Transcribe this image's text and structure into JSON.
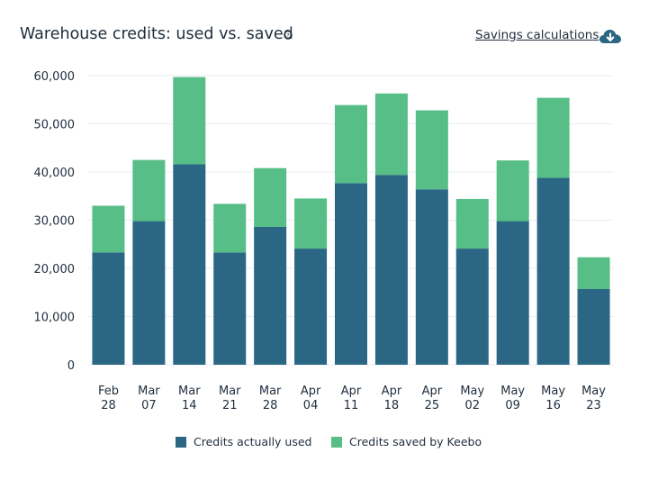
{
  "header": {
    "title": "Warehouse credits: used vs. saved",
    "savings_link": "Savings calculations"
  },
  "colors": {
    "used": "#2b6784",
    "saved": "#56be86",
    "grid": "#e9eef2",
    "axis_text": "#1f2d3d"
  },
  "icons": [
    "help-icon",
    "download-cloud-icon"
  ],
  "chart_data": {
    "type": "bar",
    "stacked": true,
    "categories": [
      "Feb 28",
      "Mar 07",
      "Mar 14",
      "Mar 21",
      "Mar 28",
      "Apr 04",
      "Apr 11",
      "Apr 18",
      "Apr 25",
      "May 02",
      "May 09",
      "May 16",
      "May 23"
    ],
    "series": [
      {
        "name": "Credits actually used",
        "values": [
          23300,
          29800,
          41600,
          23300,
          28600,
          24100,
          37700,
          39400,
          36400,
          24100,
          29800,
          38800,
          15700
        ]
      },
      {
        "name": "Credits saved by Keebo",
        "values": [
          9700,
          12700,
          18100,
          10100,
          12200,
          10400,
          16200,
          16900,
          16400,
          10300,
          12600,
          16600,
          6600
        ]
      }
    ],
    "ylim": [
      0,
      60000
    ],
    "yticks": [
      "0",
      "10,000",
      "20,000",
      "30,000",
      "40,000",
      "50,000",
      "60,000"
    ],
    "grid": true,
    "legend_position": "bottom"
  }
}
